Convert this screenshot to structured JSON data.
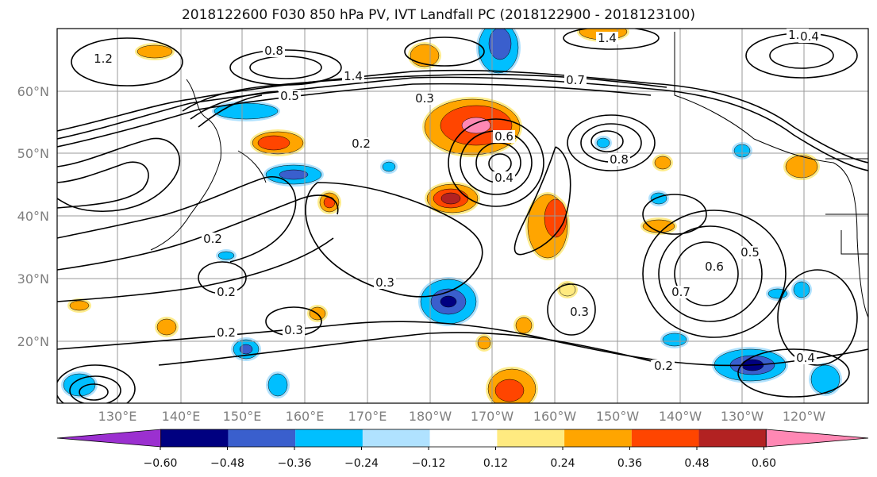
{
  "title": "2018122600 F030 850 hPa PV, IVT Landfall PC (2018122900 - 2018123100)",
  "map": {
    "lat_labels": [
      "60°N",
      "50°N",
      "40°N",
      "30°N",
      "20°N"
    ],
    "lon_labels": [
      "130°E",
      "140°E",
      "150°E",
      "160°E",
      "170°E",
      "180°W",
      "170°W",
      "160°W",
      "150°W",
      "140°W",
      "130°W",
      "120°W"
    ],
    "contour_labels": [
      "1.2",
      "0.8",
      "1.4",
      "0.5",
      "0.3",
      "0.2",
      "0.4",
      "0.6",
      "0.7",
      "0.2",
      "0.2",
      "0.3",
      "0.2",
      "0.3",
      "0.5",
      "0.6",
      "0.7",
      "0.2",
      "0.4",
      "1.4",
      "0.8",
      "1.0",
      "0.4",
      "0.3"
    ]
  },
  "colorbar": {
    "ticks": [
      "−0.60",
      "−0.48",
      "−0.36",
      "−0.24",
      "−0.12",
      "0.12",
      "0.24",
      "0.36",
      "0.48",
      "0.60"
    ],
    "colors": [
      "#9b30d0",
      "#000080",
      "#3a5fcd",
      "#00bfff",
      "#b0e2ff",
      "#ffffff",
      "#ffea80",
      "#ffa500",
      "#ff4500",
      "#b22222",
      "#ff88b4"
    ]
  },
  "features": {
    "positive_color_orange": "#ffa500",
    "positive_color_red": "#ff4500",
    "positive_color_dark": "#b22222",
    "positive_color_pink": "#ff88b4",
    "positive_color_yellow": "#ffea80",
    "negative_color_light": "#b0e2ff",
    "negative_color_cyan": "#00bfff",
    "negative_color_blue": "#3a5fcd",
    "negative_color_navy": "#000080"
  }
}
